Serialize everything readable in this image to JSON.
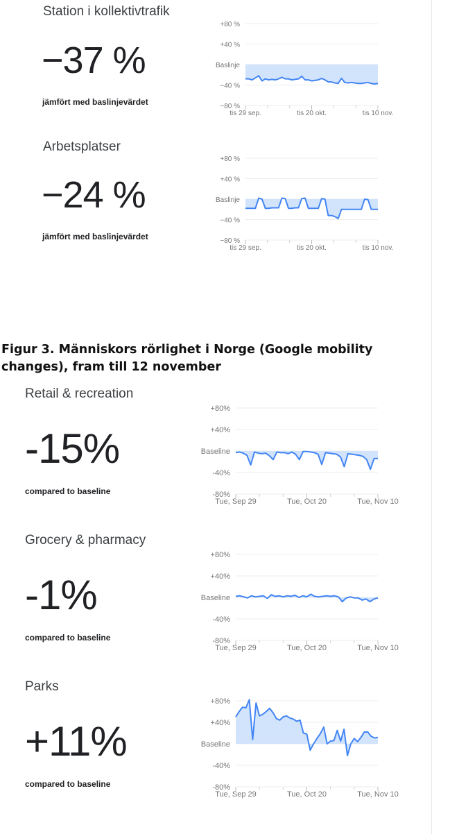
{
  "figure_caption": "Figur 3. Människors rörlighet i Norge (Google mobility changes), fram till 12 november",
  "chart_data": [
    {
      "type": "line",
      "title": "Station i kollektivtrafik",
      "value_text": "−37 %",
      "subtitle": "jämfört med baslinjevärdet",
      "y_ticks": [
        "+80 %",
        "+40 %",
        "Baslinje",
        "−40 %",
        "−80 %"
      ],
      "x_ticks": [
        "tis 29 sep.",
        "tis 20 okt.",
        "tis 10 nov."
      ],
      "ylim": [
        -80,
        80
      ],
      "series": [
        {
          "values": [
            -28,
            -28,
            -30,
            -26,
            -22,
            -32,
            -28,
            -30,
            -29,
            -30,
            -28,
            -25,
            -28,
            -28,
            -30,
            -29,
            -28,
            -23,
            -30,
            -30,
            -32,
            -31,
            -30,
            -27,
            -30,
            -34,
            -34,
            -36,
            -37,
            -27,
            -35,
            -36,
            -35,
            -36,
            -37,
            -37,
            -36,
            -35,
            -37,
            -38,
            -37
          ]
        }
      ]
    },
    {
      "type": "line",
      "title": "Arbetsplatser",
      "value_text": "−24 %",
      "subtitle": "jämfört med baslinjevärdet",
      "y_ticks": [
        "+80 %",
        "+40 %",
        "Baslinje",
        "−40 %",
        "−80 %"
      ],
      "x_ticks": [
        "tis 29 sep.",
        "tis 20 okt.",
        "tis 10 nov."
      ],
      "ylim": [
        -80,
        80
      ],
      "series": [
        {
          "values": [
            -18,
            -18,
            -18,
            -18,
            2,
            0,
            -18,
            -18,
            -17,
            -17,
            -17,
            2,
            1,
            -18,
            -18,
            -17,
            -17,
            1,
            2,
            -18,
            -18,
            -18,
            -18,
            1,
            0,
            -32,
            -32,
            -34,
            -38,
            -20,
            -20,
            -20,
            -20,
            -20,
            -20,
            -20,
            0,
            -1,
            -20,
            -20,
            -20
          ]
        }
      ]
    },
    {
      "type": "line",
      "title": "Retail & recreation",
      "value_text": "-15%",
      "subtitle": "compared to baseline",
      "y_ticks": [
        "+80%",
        "+40%",
        "Baseline",
        "-40%",
        "-80%"
      ],
      "x_ticks": [
        "Tue, Sep 29",
        "Tue, Oct 20",
        "Tue, Nov 10"
      ],
      "ylim": [
        -80,
        80
      ],
      "series": [
        {
          "values": [
            -3,
            -2,
            -4,
            -8,
            -26,
            -2,
            -4,
            -5,
            -4,
            -9,
            -16,
            -2,
            -3,
            -3,
            -5,
            -2,
            -6,
            -16,
            -1,
            -1,
            -2,
            -3,
            -6,
            -25,
            -3,
            -4,
            -5,
            -6,
            -11,
            -29,
            -5,
            -6,
            -7,
            -8,
            -10,
            -16,
            -34,
            -14,
            -14
          ]
        }
      ]
    },
    {
      "type": "line",
      "title": "Grocery & pharmacy",
      "value_text": "-1%",
      "subtitle": "compared to baseline",
      "y_ticks": [
        "+80%",
        "+40%",
        "Baseline",
        "-40%",
        "-80%"
      ],
      "x_ticks": [
        "Tue, Sep 29",
        "Tue, Oct 20",
        "Tue, Nov 10"
      ],
      "ylim": [
        -80,
        80
      ],
      "series": [
        {
          "values": [
            2,
            3,
            1,
            -1,
            3,
            1,
            2,
            3,
            -2,
            5,
            2,
            3,
            1,
            3,
            2,
            4,
            0,
            3,
            1,
            6,
            2,
            1,
            2,
            3,
            2,
            3,
            1,
            -8,
            -1,
            1,
            -1,
            -1,
            -5,
            -3,
            -8,
            -3,
            -1
          ]
        }
      ]
    },
    {
      "type": "line",
      "title": "Parks",
      "value_text": "+11%",
      "subtitle": "compared to baseline",
      "y_ticks": [
        "+80%",
        "+40%",
        "Baseline",
        "-40%",
        "-80%"
      ],
      "x_ticks": [
        "Tue, Sep 29",
        "Tue, Oct 20",
        "Tue, Nov 10"
      ],
      "ylim": [
        -80,
        80
      ],
      "series": [
        {
          "values": [
            50,
            60,
            68,
            67,
            82,
            8,
            76,
            52,
            55,
            60,
            66,
            58,
            47,
            44,
            50,
            52,
            48,
            46,
            42,
            44,
            20,
            18,
            -12,
            0,
            10,
            19,
            31,
            0,
            5,
            6,
            25,
            5,
            27,
            -22,
            0,
            10,
            4,
            12,
            22,
            22,
            14,
            11,
            12
          ]
        }
      ]
    }
  ]
}
